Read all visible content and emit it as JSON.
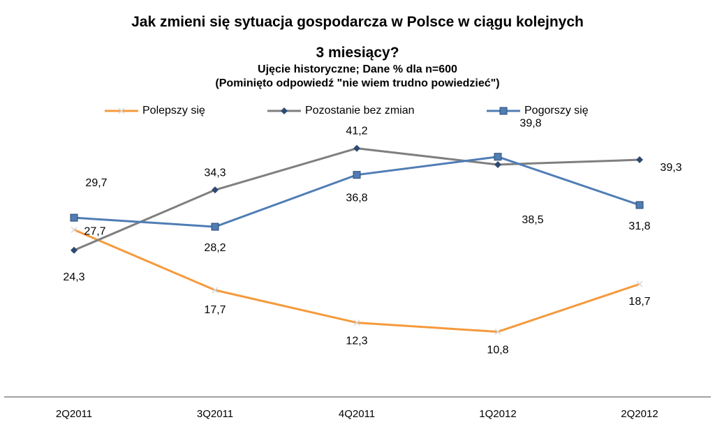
{
  "chart_data": {
    "type": "line",
    "title_line1": "Jak zmieni się sytuacja gospodarcza  w Polsce w ciągu kolejnych",
    "title_line2": "3 miesiący?",
    "subtitle1": "Ujęcie historyczne; Dane % dla n=600",
    "subtitle2": "(Pominięto odpowiedź  \"nie wiem trudno  powiedzieć\")",
    "categories": [
      "2Q2011",
      "3Q2011",
      "4Q2011",
      "1Q2012",
      "2Q2012"
    ],
    "series": [
      {
        "name": "Polepszy się",
        "legend_text": "Polepszy się",
        "color": "#F59A3C",
        "marker": "x",
        "values": [
          27.7,
          17.7,
          12.3,
          10.8,
          18.7
        ],
        "labels": [
          "27,7",
          "17,7",
          "12,3",
          "10,8",
          "18,7"
        ]
      },
      {
        "name": "Pozostanie bez zmian",
        "legend_text": "Pozostanie bez zmian",
        "color": "#7F7F7F",
        "marker": "diamond",
        "values": [
          24.3,
          34.3,
          41.2,
          38.5,
          39.3
        ],
        "labels": [
          "24,3",
          "34,3",
          "41,2",
          "38,5",
          "39,3"
        ]
      },
      {
        "name": "Pogorszy się",
        "legend_text": "Pogorszy się",
        "color": "#4F7DB4",
        "marker": "square",
        "values": [
          29.7,
          28.2,
          36.8,
          39.8,
          31.8
        ],
        "labels": [
          "29,7",
          "28,2",
          "36,8",
          "39,8",
          "31,8"
        ]
      }
    ],
    "ylim": [
      0,
      50
    ],
    "grid": false,
    "legend_position": "top"
  }
}
